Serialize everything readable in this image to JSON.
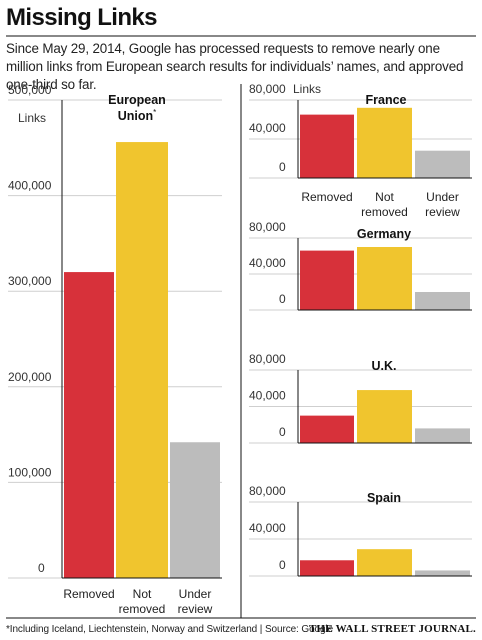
{
  "headline": "Missing Links",
  "dek": "Since May 29, 2014, Google has processed requests to remove nearly one million links from European search results for individuals’ names, and approved one-third so far.",
  "footnote": "*Including Iceland, Liechtenstein, Norway and Switzerland | Source: Google",
  "publisher": "THE WALL STREET JOURNAL.",
  "colors": {
    "removed": "#d7313a",
    "not_removed": "#f0c52e",
    "under_review": "#bcbcbc",
    "grid": "#cfcfcf",
    "frame": "#111111"
  },
  "chart_data": [
    {
      "type": "bar",
      "title": "European Union*",
      "categories": [
        "Removed",
        "Not removed",
        "Under review"
      ],
      "values": [
        320000,
        456000,
        142000
      ],
      "ylim": [
        0,
        500000
      ],
      "yticks": [
        0,
        100000,
        200000,
        300000,
        400000,
        500000
      ],
      "ytick_labels": [
        "0",
        "100,000",
        "200,000",
        "300,000",
        "400,000",
        "500,000"
      ],
      "unit_label": "Links"
    },
    {
      "type": "bar",
      "title": "France",
      "categories": [
        "Removed",
        "Not removed",
        "Under review"
      ],
      "values": [
        65000,
        72000,
        28000
      ],
      "ylim": [
        0,
        80000
      ],
      "yticks": [
        0,
        40000,
        80000
      ],
      "ytick_labels": [
        "0",
        "40,000",
        "80,000"
      ],
      "unit_label": "Links"
    },
    {
      "type": "bar",
      "title": "Germany",
      "categories": [
        "Removed",
        "Not removed",
        "Under review"
      ],
      "values": [
        66000,
        70000,
        20000
      ],
      "ylim": [
        0,
        80000
      ],
      "yticks": [
        0,
        40000,
        80000
      ],
      "ytick_labels": [
        "0",
        "40,000",
        "80,000"
      ]
    },
    {
      "type": "bar",
      "title": "U.K.",
      "categories": [
        "Removed",
        "Not removed",
        "Under review"
      ],
      "values": [
        30000,
        58000,
        16000
      ],
      "ylim": [
        0,
        80000
      ],
      "yticks": [
        0,
        40000,
        80000
      ],
      "ytick_labels": [
        "0",
        "40,000",
        "80,000"
      ]
    },
    {
      "type": "bar",
      "title": "Spain",
      "categories": [
        "Removed",
        "Not removed",
        "Under review"
      ],
      "values": [
        17000,
        29000,
        6000
      ],
      "ylim": [
        0,
        80000
      ],
      "yticks": [
        0,
        40000,
        80000
      ],
      "ytick_labels": [
        "0",
        "40,000",
        "80,000"
      ]
    }
  ]
}
